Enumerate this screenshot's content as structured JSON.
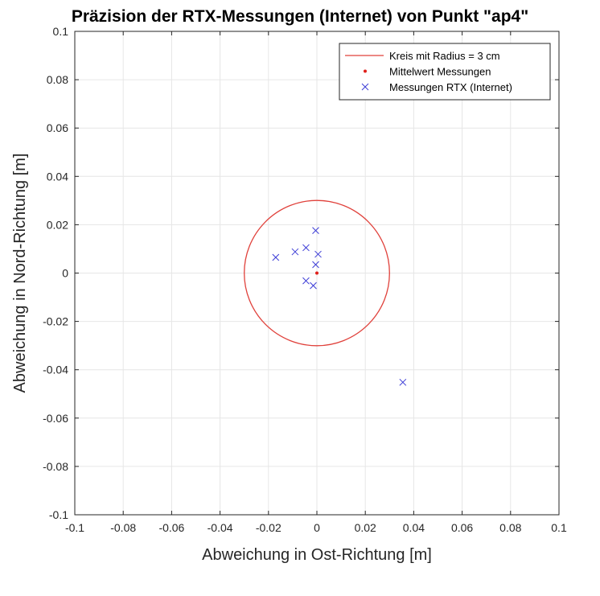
{
  "colors": {
    "circle": "#e0413b",
    "mean": "#e0201b",
    "measurement": "#3d3dd6"
  },
  "chart_data": {
    "type": "scatter",
    "title": "Präzision der RTX-Messungen (Internet) von Punkt \"ap4\"",
    "xlabel": "Abweichung in Ost-Richtung [m]",
    "ylabel": "Abweichung in Nord-Richtung [m]",
    "xlim": [
      -0.1,
      0.1
    ],
    "ylim": [
      -0.1,
      0.1
    ],
    "xticks": [
      -0.1,
      -0.08,
      -0.06,
      -0.04,
      -0.02,
      0,
      0.02,
      0.04,
      0.06,
      0.08,
      0.1
    ],
    "yticks": [
      -0.1,
      -0.08,
      -0.06,
      -0.04,
      -0.02,
      0,
      0.02,
      0.04,
      0.06,
      0.08,
      0.1
    ],
    "xtick_labels": [
      "-0.1",
      "-0.08",
      "-0.06",
      "-0.04",
      "-0.02",
      "0",
      "0.02",
      "0.04",
      "0.06",
      "0.08",
      "0.1"
    ],
    "ytick_labels": [
      "-0.1",
      "-0.08",
      "-0.06",
      "-0.04",
      "-0.02",
      "0",
      "0.02",
      "0.04",
      "0.06",
      "0.08",
      "0.1"
    ],
    "grid": true,
    "legend_position": "top-right",
    "series": [
      {
        "name": "Kreis mit Radius = 3 cm",
        "kind": "circle",
        "center": [
          0,
          0
        ],
        "radius": 0.03
      },
      {
        "name": "Mittelwert Messungen",
        "kind": "dot",
        "x": [
          0
        ],
        "y": [
          0
        ]
      },
      {
        "name": "Messungen RTX (Internet)",
        "kind": "cross",
        "x": [
          -0.017,
          -0.009,
          -0.0045,
          -0.0005,
          0.0005,
          -0.0005,
          -0.0045,
          -0.0015,
          0.0355
        ],
        "y": [
          0.0065,
          0.0088,
          0.0105,
          0.0176,
          0.0078,
          0.0035,
          -0.0032,
          -0.0052,
          -0.0452
        ]
      }
    ]
  }
}
